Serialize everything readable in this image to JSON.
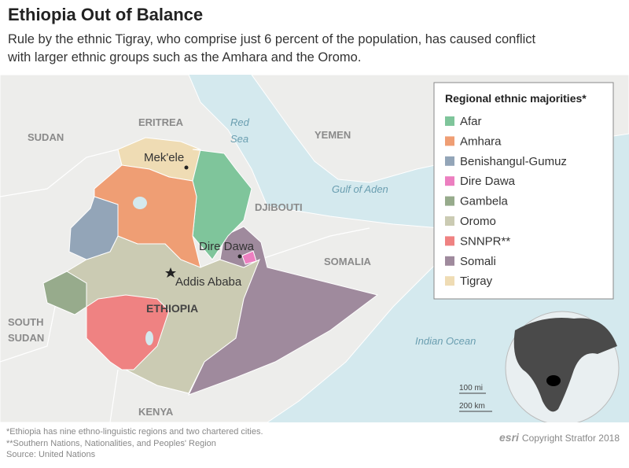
{
  "header": {
    "title": "Ethiopia Out of Balance",
    "subtitle": "Rule by the ethnic Tigray, who comprise just 6 percent of the population, has caused conflict with larger ethnic groups such as the Amhara and the Oromo."
  },
  "map": {
    "labels": {
      "sudan": "SUDAN",
      "eritrea": "ERITREA",
      "red_sea": [
        "Red",
        "Sea"
      ],
      "yemen": "YEMEN",
      "gulf_of_aden": "Gulf of Aden",
      "djibouti": "DJIBOUTI",
      "somalia": "SOMALIA",
      "mekele": "Mek'ele",
      "dire_dawa": "Dire Dawa",
      "addis_ababa": "Addis Ababa",
      "ethiopia": "ETHIOPIA",
      "south_sudan": [
        "SOUTH",
        "SUDAN"
      ],
      "indian_ocean": "Indian Ocean",
      "kenya": "KENYA"
    },
    "scale": [
      "100 mi",
      "200 km"
    ]
  },
  "legend": {
    "title": "Regional ethnic majorities*",
    "items": [
      {
        "label": "Afar",
        "color": "#7fc59b"
      },
      {
        "label": "Amhara",
        "color": "#ef9e74"
      },
      {
        "label": "Benishangul-Gumuz",
        "color": "#93a5b8"
      },
      {
        "label": "Dire Dawa",
        "color": "#ec7fc0"
      },
      {
        "label": "Gambela",
        "color": "#97ab8c"
      },
      {
        "label": "Oromo",
        "color": "#cbcbb3"
      },
      {
        "label": "SNNPR**",
        "color": "#ef8282"
      },
      {
        "label": "Somali",
        "color": "#9f8a9d"
      },
      {
        "label": "Tigray",
        "color": "#efdcb4"
      }
    ]
  },
  "footer": {
    "notes": [
      "*Ethiopia has nine ethno-linguistic regions and two chartered cities.",
      "**Southern Nations, Nationalities, and Peoples' Region",
      "Source: United Nations"
    ],
    "logo": "esri",
    "credit": "Copyright Stratfor 2018"
  }
}
